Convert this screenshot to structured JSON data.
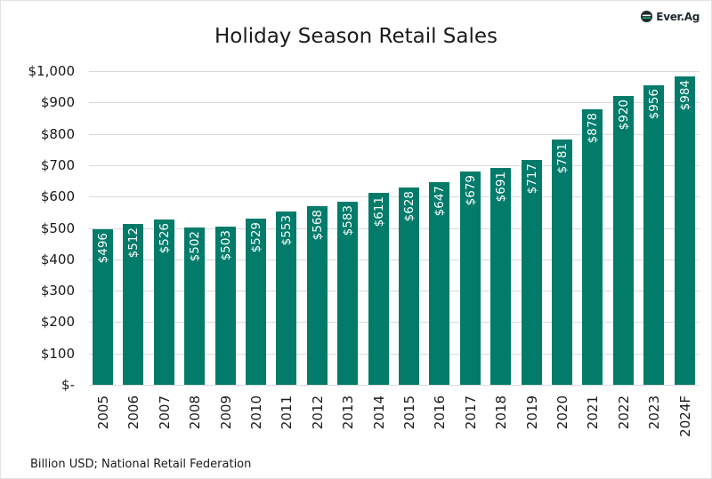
{
  "header": {
    "title": "Holiday Season Retail Sales",
    "logo_text": "Ever.Ag"
  },
  "footer": {
    "source": "Billion USD; National Retail Federation"
  },
  "colors": {
    "bar": "#027b6a",
    "grid": "#d9d9d9",
    "logo_accent": "#1db57a"
  },
  "chart_data": {
    "type": "bar",
    "title": "Holiday Season Retail Sales",
    "xlabel": "",
    "ylabel": "Billion USD",
    "ylim": [
      0,
      1000
    ],
    "yticks": [
      "$-",
      "$100",
      "$200",
      "$300",
      "$400",
      "$500",
      "$600",
      "$700",
      "$800",
      "$900",
      "$1,000"
    ],
    "grid": true,
    "legend": null,
    "categories": [
      "2005",
      "2006",
      "2007",
      "2008",
      "2009",
      "2010",
      "2011",
      "2012",
      "2013",
      "2014",
      "2015",
      "2016",
      "2017",
      "2018",
      "2019",
      "2020",
      "2021",
      "2022",
      "2023",
      "2024F"
    ],
    "values": [
      496,
      512,
      526,
      502,
      503,
      529,
      553,
      568,
      583,
      611,
      628,
      647,
      679,
      691,
      717,
      781,
      878,
      920,
      956,
      984
    ],
    "data_labels": [
      "$496",
      "$512",
      "$526",
      "$502",
      "$503",
      "$529",
      "$553",
      "$568",
      "$583",
      "$611",
      "$628",
      "$647",
      "$679",
      "$691",
      "$717",
      "$781",
      "$878",
      "$920",
      "$956",
      "$984"
    ],
    "annotations": [
      "Billion USD; National Retail Federation"
    ]
  }
}
